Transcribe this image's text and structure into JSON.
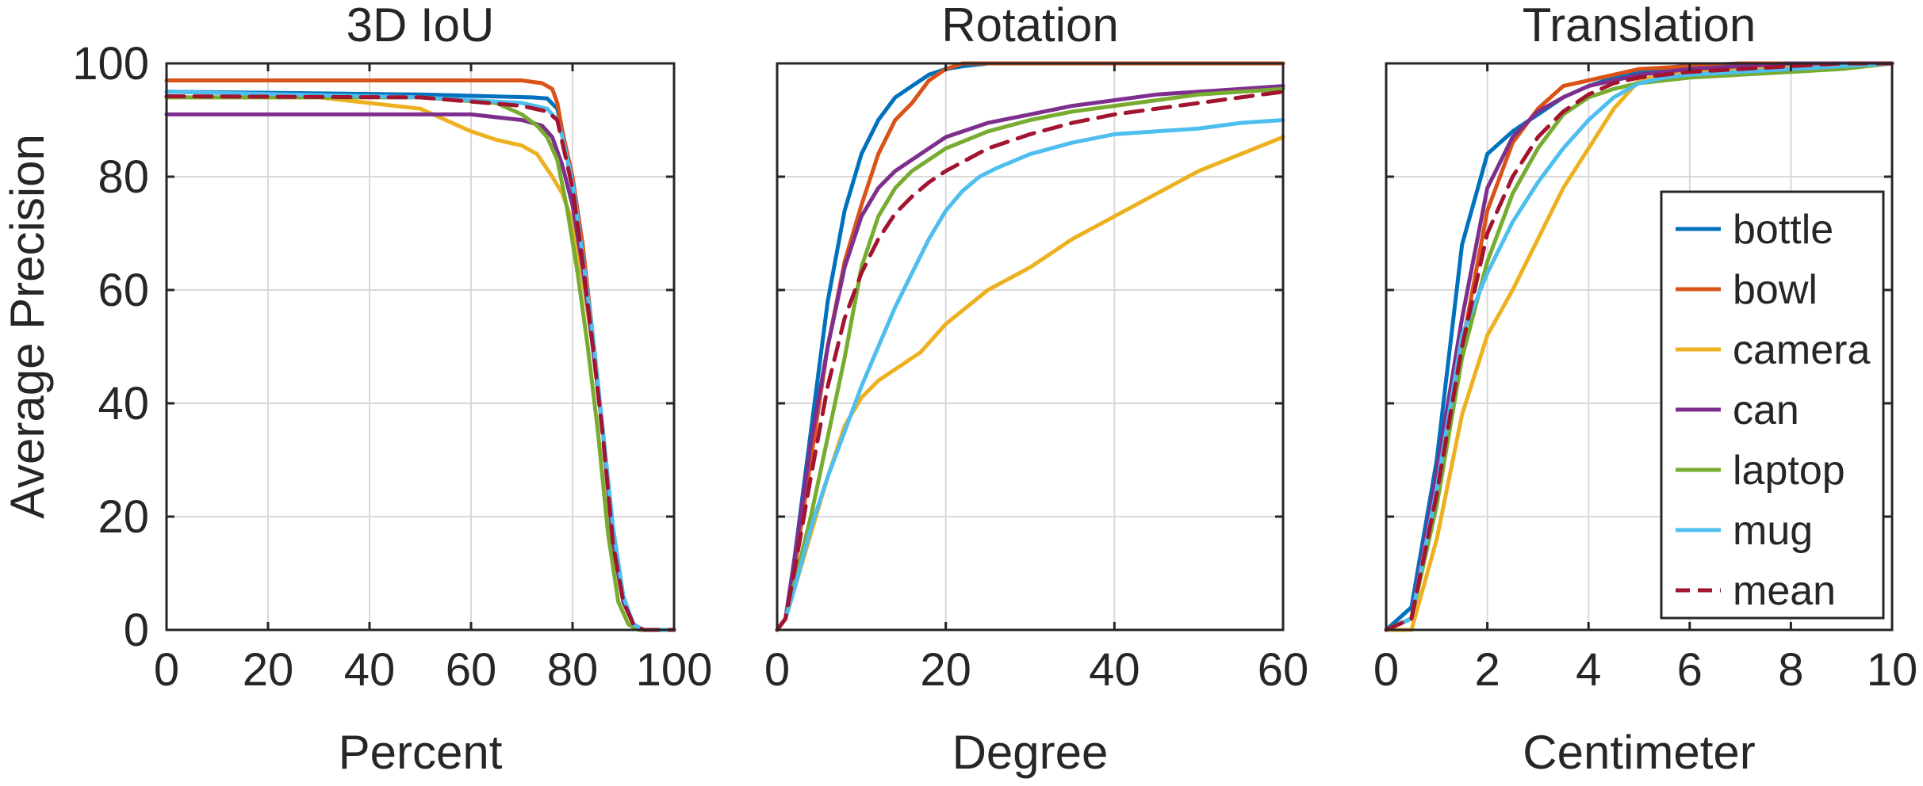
{
  "chart_data": [
    {
      "type": "line",
      "title": "3D IoU",
      "xlabel": "Percent",
      "ylabel": "Average Precision",
      "xlim": [
        0,
        100
      ],
      "ylim": [
        0,
        100
      ],
      "xticks": [
        0,
        20,
        40,
        60,
        80,
        100
      ],
      "yticks": [
        0,
        20,
        40,
        60,
        80,
        100
      ],
      "grid": true,
      "series": [
        {
          "name": "bottle",
          "color": "#0072BD",
          "dash": false,
          "x": [
            0,
            50,
            72,
            75,
            77,
            78,
            80,
            82,
            84,
            86,
            88,
            90,
            92,
            94,
            96,
            100
          ],
          "y": [
            95,
            94.5,
            94,
            93.8,
            92,
            88,
            78,
            65,
            50,
            35,
            15,
            5,
            1,
            0,
            0,
            0
          ]
        },
        {
          "name": "bowl",
          "color": "#D95319",
          "dash": false,
          "x": [
            0,
            50,
            70,
            74,
            76,
            77,
            78,
            80,
            82,
            84,
            86,
            88,
            90,
            92,
            94,
            100
          ],
          "y": [
            97,
            97,
            97,
            96.5,
            95.5,
            93,
            88,
            80,
            68,
            52,
            35,
            15,
            5,
            1,
            0,
            0
          ]
        },
        {
          "name": "camera",
          "color": "#EDB120",
          "dash": false,
          "x": [
            0,
            30,
            50,
            55,
            60,
            65,
            70,
            73,
            76,
            78,
            80,
            82,
            84,
            86,
            88,
            90,
            92,
            94,
            100
          ],
          "y": [
            94,
            94,
            92,
            90,
            88,
            86.5,
            85.5,
            84,
            80,
            77,
            72,
            62,
            50,
            35,
            15,
            5,
            1,
            0,
            0
          ]
        },
        {
          "name": "can",
          "color": "#7E2F8E",
          "dash": false,
          "x": [
            0,
            40,
            60,
            70,
            74,
            76,
            78,
            80,
            82,
            84,
            86,
            88,
            90,
            92,
            94,
            100
          ],
          "y": [
            91,
            91,
            91,
            90,
            89,
            87,
            82,
            75,
            64,
            50,
            35,
            15,
            5,
            1,
            0,
            0
          ]
        },
        {
          "name": "laptop",
          "color": "#77AC30",
          "dash": false,
          "x": [
            0,
            50,
            65,
            70,
            73,
            75,
            77,
            79,
            81,
            83,
            85,
            87,
            89,
            91,
            93,
            100
          ],
          "y": [
            94,
            94,
            93,
            91,
            89,
            87,
            83,
            74,
            63,
            50,
            35,
            17,
            5,
            1,
            0,
            0
          ]
        },
        {
          "name": "mug",
          "color": "#4DBEEE",
          "dash": false,
          "x": [
            0,
            50,
            70,
            75,
            77,
            78,
            80,
            82,
            84,
            86,
            88,
            90,
            92,
            94,
            96,
            100
          ],
          "y": [
            95,
            94,
            93,
            92,
            90,
            87,
            79,
            66,
            52,
            35,
            18,
            6,
            1,
            0,
            0,
            0
          ]
        },
        {
          "name": "mean",
          "color": "#A2142F",
          "dash": true,
          "x": [
            0,
            50,
            70,
            75,
            77,
            78,
            80,
            82,
            84,
            86,
            88,
            90,
            92,
            94,
            96,
            100
          ],
          "y": [
            94.2,
            94,
            92.5,
            91.5,
            90,
            86,
            78,
            65,
            50,
            34,
            15,
            5,
            1,
            0,
            0,
            0
          ]
        }
      ]
    },
    {
      "type": "line",
      "title": "Rotation",
      "xlabel": "Degree",
      "ylabel": "",
      "xlim": [
        0,
        60
      ],
      "ylim": [
        0,
        100
      ],
      "xticks": [
        0,
        20,
        40,
        60
      ],
      "yticks": [
        0,
        20,
        40,
        60,
        80,
        100
      ],
      "grid": true,
      "series": [
        {
          "name": "bottle",
          "color": "#0072BD",
          "dash": false,
          "x": [
            0,
            1,
            2,
            4,
            6,
            8,
            10,
            12,
            14,
            16,
            18,
            20,
            22,
            25,
            30,
            40,
            60
          ],
          "y": [
            0,
            2,
            12,
            35,
            58,
            74,
            84,
            90,
            94,
            96,
            98,
            99,
            99.5,
            100,
            100,
            100,
            100
          ]
        },
        {
          "name": "bowl",
          "color": "#D95319",
          "dash": false,
          "x": [
            0,
            1,
            2,
            4,
            6,
            8,
            10,
            12,
            14,
            16,
            18,
            20,
            22,
            25,
            30,
            40,
            60
          ],
          "y": [
            0,
            2,
            10,
            30,
            50,
            65,
            75,
            84,
            90,
            93,
            97,
            99,
            100,
            100,
            100,
            100,
            100
          ]
        },
        {
          "name": "camera",
          "color": "#EDB120",
          "dash": false,
          "x": [
            0,
            1,
            2,
            4,
            6,
            8,
            10,
            12,
            14,
            17,
            20,
            25,
            30,
            35,
            40,
            45,
            50,
            55,
            60
          ],
          "y": [
            0,
            2,
            7,
            17,
            27,
            36,
            41,
            44,
            46,
            49,
            54,
            60,
            64,
            69,
            73,
            77,
            81,
            84,
            87
          ]
        },
        {
          "name": "can",
          "color": "#7E2F8E",
          "dash": false,
          "x": [
            0,
            1,
            2,
            4,
            6,
            8,
            10,
            12,
            14,
            16,
            18,
            20,
            25,
            30,
            35,
            40,
            45,
            50,
            55,
            60
          ],
          "y": [
            0,
            2,
            12,
            33,
            50,
            64,
            73,
            78,
            81,
            83,
            85,
            87,
            89.5,
            91,
            92.5,
            93.5,
            94.5,
            95,
            95.5,
            96
          ]
        },
        {
          "name": "laptop",
          "color": "#77AC30",
          "dash": false,
          "x": [
            0,
            1,
            2,
            4,
            6,
            8,
            10,
            12,
            14,
            16,
            18,
            20,
            25,
            30,
            35,
            40,
            45,
            50,
            55,
            60
          ],
          "y": [
            0,
            2,
            8,
            20,
            34,
            48,
            64,
            73,
            78,
            81,
            83,
            85,
            88,
            90,
            91.5,
            92.5,
            93.5,
            94.5,
            95,
            95.5
          ]
        },
        {
          "name": "mug",
          "color": "#4DBEEE",
          "dash": false,
          "x": [
            0,
            1,
            2,
            4,
            6,
            8,
            10,
            12,
            14,
            16,
            18,
            20,
            22,
            24,
            26,
            30,
            35,
            40,
            45,
            50,
            55,
            60
          ],
          "y": [
            0,
            2,
            7,
            18,
            27,
            35,
            43,
            50,
            57,
            63,
            69,
            74,
            77.5,
            80,
            81.5,
            84,
            86,
            87.5,
            88,
            88.5,
            89.5,
            90
          ]
        },
        {
          "name": "mean",
          "color": "#A2142F",
          "dash": true,
          "x": [
            0,
            1,
            2,
            4,
            6,
            8,
            10,
            12,
            14,
            16,
            18,
            20,
            25,
            30,
            35,
            40,
            45,
            50,
            55,
            60
          ],
          "y": [
            0,
            2,
            10,
            27,
            43,
            55,
            63,
            69,
            73.5,
            76.5,
            79,
            81,
            85,
            87.5,
            89.5,
            91,
            92,
            93,
            94,
            95
          ]
        }
      ]
    },
    {
      "type": "line",
      "title": "Translation",
      "xlabel": "Centimeter",
      "ylabel": "",
      "xlim": [
        0,
        10
      ],
      "ylim": [
        0,
        100
      ],
      "xticks": [
        0,
        2,
        4,
        6,
        8,
        10
      ],
      "yticks": [
        0,
        20,
        40,
        60,
        80,
        100
      ],
      "grid": true,
      "series": [
        {
          "name": "bottle",
          "color": "#0072BD",
          "dash": false,
          "x": [
            0,
            0.5,
            1,
            1.5,
            2,
            2.5,
            3,
            3.5,
            4,
            4.5,
            5,
            5.5,
            6,
            7,
            8,
            9,
            10
          ],
          "y": [
            0,
            4,
            30,
            68,
            84,
            88,
            91,
            94,
            96,
            97.5,
            98.5,
            99.2,
            99.6,
            100,
            100,
            100,
            100
          ]
        },
        {
          "name": "bowl",
          "color": "#D95319",
          "dash": false,
          "x": [
            0,
            0.5,
            1,
            1.5,
            2,
            2.5,
            3,
            3.5,
            4,
            4.5,
            5,
            6,
            7,
            8,
            9,
            10
          ],
          "y": [
            0,
            2,
            25,
            50,
            74,
            86,
            92,
            96,
            97,
            98,
            99,
            99.5,
            100,
            100,
            100,
            100
          ]
        },
        {
          "name": "camera",
          "color": "#EDB120",
          "dash": false,
          "x": [
            0,
            0.5,
            1,
            1.5,
            2,
            2.5,
            3,
            3.5,
            4,
            4.5,
            5,
            5.5,
            6,
            7,
            8,
            9,
            10
          ],
          "y": [
            0,
            0,
            16,
            38,
            52,
            60,
            69,
            78,
            85,
            92,
            97,
            98,
            98.5,
            99,
            99.5,
            100,
            100
          ]
        },
        {
          "name": "can",
          "color": "#7E2F8E",
          "dash": false,
          "x": [
            0,
            0.5,
            1,
            1.5,
            2,
            2.5,
            3,
            3.5,
            4,
            4.5,
            5,
            6,
            7,
            8,
            9,
            10
          ],
          "y": [
            0,
            2,
            28,
            55,
            78,
            87,
            91.5,
            94,
            96,
            97,
            98,
            99,
            99.5,
            100,
            100,
            100
          ]
        },
        {
          "name": "laptop",
          "color": "#77AC30",
          "dash": false,
          "x": [
            0,
            0.5,
            1,
            1.5,
            2,
            2.5,
            3,
            3.5,
            4,
            4.5,
            5,
            5.5,
            6,
            7,
            8,
            9,
            10
          ],
          "y": [
            0,
            2,
            22,
            48,
            65,
            77,
            85,
            91,
            94,
            95.5,
            96.5,
            97,
            97.5,
            98,
            98.5,
            99,
            100
          ]
        },
        {
          "name": "mug",
          "color": "#4DBEEE",
          "dash": false,
          "x": [
            0,
            0.5,
            1,
            1.5,
            2,
            2.5,
            3,
            3.5,
            4,
            4.5,
            5,
            5.5,
            6,
            7,
            8,
            9,
            10
          ],
          "y": [
            0,
            2,
            25,
            52,
            63,
            72,
            79,
            85,
            90,
            94,
            96.5,
            97.5,
            98,
            98.5,
            99,
            99.5,
            100
          ]
        },
        {
          "name": "mean",
          "color": "#A2142F",
          "dash": true,
          "x": [
            0,
            0.5,
            1,
            1.5,
            2,
            2.5,
            3,
            3.5,
            4,
            4.5,
            5,
            6,
            7,
            8,
            9,
            10
          ],
          "y": [
            0,
            2,
            24,
            50,
            70,
            80,
            87,
            91.5,
            94.5,
            96.5,
            97.5,
            98.5,
            99,
            99.5,
            100,
            100
          ]
        }
      ]
    }
  ],
  "legend": {
    "location": "bottom-right of Translation panel",
    "entries": [
      "bottle",
      "bowl",
      "camera",
      "can",
      "laptop",
      "mug",
      "mean"
    ]
  }
}
